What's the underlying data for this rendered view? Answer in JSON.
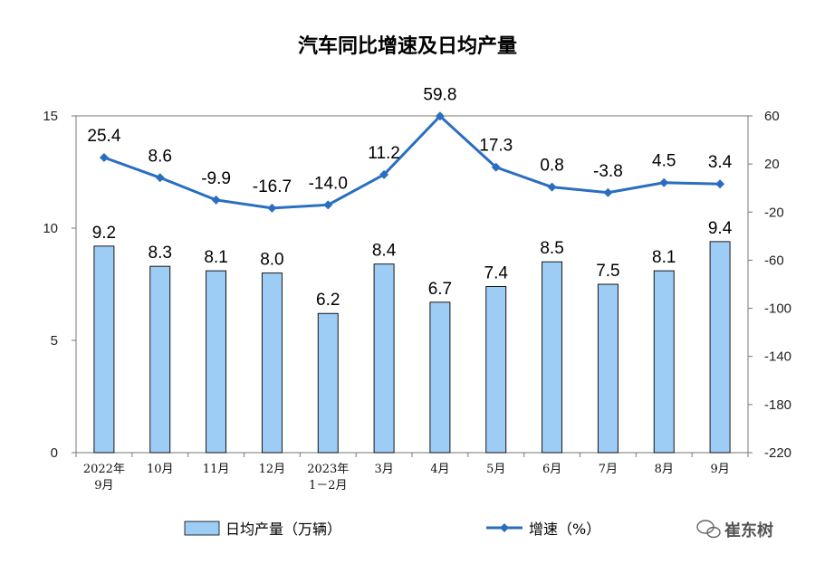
{
  "chart_data": {
    "type": "bar",
    "title": "汽车同比增速及日均产量",
    "categories": [
      [
        "2022年",
        "9月"
      ],
      [
        "10月"
      ],
      [
        "11月"
      ],
      [
        "12月"
      ],
      [
        "2023年",
        "1－2月"
      ],
      [
        "3月"
      ],
      [
        "4月"
      ],
      [
        "5月"
      ],
      [
        "6月"
      ],
      [
        "7月"
      ],
      [
        "8月"
      ],
      [
        "9月"
      ]
    ],
    "series": [
      {
        "name": "日均产量（万辆）",
        "type": "bar",
        "axis": "left",
        "color": "#9dcdf5",
        "values": [
          9.2,
          8.3,
          8.1,
          8.0,
          6.2,
          8.4,
          6.7,
          7.4,
          8.5,
          7.5,
          8.1,
          9.4
        ],
        "labels": [
          "9.2",
          "8.3",
          "8.1",
          "8.0",
          "6.2",
          "8.4",
          "6.7",
          "7.4",
          "8.5",
          "7.5",
          "8.1",
          "9.4"
        ]
      },
      {
        "name": "增速（%）",
        "type": "line",
        "axis": "right",
        "color": "#2a6ebf",
        "values": [
          25.4,
          8.6,
          -9.9,
          -16.7,
          -14.0,
          11.2,
          59.8,
          17.3,
          0.8,
          -3.8,
          4.5,
          3.4
        ],
        "labels": [
          "25.4",
          "8.6",
          "-9.9",
          "-16.7",
          "-14.0",
          "11.2",
          "59.8",
          "17.3",
          "0.8",
          "-3.8",
          "4.5",
          "3.4"
        ]
      }
    ],
    "y_left": {
      "ylim": [
        0,
        15
      ],
      "ticks": [
        "0",
        "5",
        "10",
        "15"
      ]
    },
    "y_right": {
      "ylim": [
        -220,
        60
      ],
      "ticks": [
        "-220",
        "-180",
        "-140",
        "-100",
        "-60",
        "-20",
        "20",
        "60"
      ]
    },
    "grid": false,
    "legend": "bottom"
  },
  "watermark": {
    "text": "崔东树",
    "icon": "wechat-icon"
  }
}
